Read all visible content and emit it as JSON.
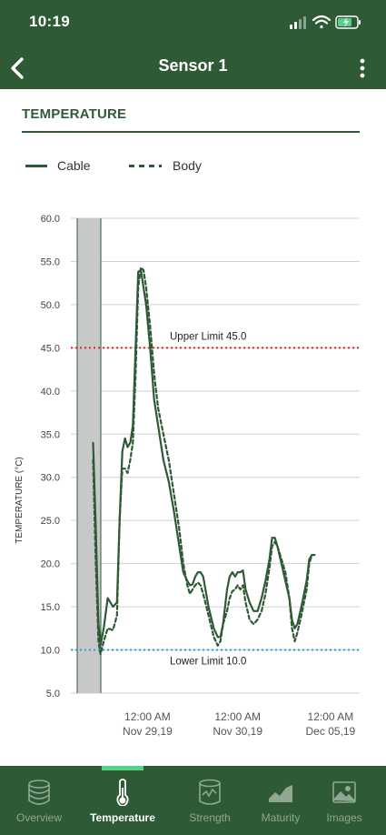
{
  "status_bar": {
    "time": "10:19"
  },
  "header": {
    "title": "Sensor 1",
    "back_icon": "chevron-left-icon",
    "menu_icon": "more-vertical-icon"
  },
  "section": {
    "title": "TEMPERATURE"
  },
  "legend": [
    {
      "label": "Cable",
      "style": "solid"
    },
    {
      "label": "Body",
      "style": "dashed"
    }
  ],
  "colors": {
    "brand": "#2f5a36",
    "upper_limit": "#e0262f",
    "lower_limit": "#2a9fd6",
    "active_indicator": "#57d18a",
    "shade": "#c8c8c8"
  },
  "chart_data": {
    "type": "line",
    "ylabel": "TEMPERATURE (°C)",
    "ylim": [
      5.0,
      60.0
    ],
    "yticks": [
      "60.0",
      "55.0",
      "50.0",
      "45.0",
      "40.0",
      "35.0",
      "30.0",
      "25.0",
      "20.0",
      "15.0",
      "10.0",
      "5.0"
    ],
    "xlim": [
      0,
      100
    ],
    "xticks": [
      {
        "x": 20,
        "line1": "12:00 AM",
        "line2": "Nov 29,19"
      },
      {
        "x": 54,
        "line1": "12:00 AM",
        "line2": "Nov 30,19"
      },
      {
        "x": 89,
        "line1": "12:00 AM",
        "line2": "Dec 05,19"
      }
    ],
    "grid": true,
    "shaded_range": [
      -6.5,
      2.4
    ],
    "limits": [
      {
        "label": "Upper Limit 45.0",
        "value": 45.0,
        "color": "#e0262f"
      },
      {
        "label": "Lower Limit 10.0",
        "value": 10.0,
        "color": "#2a9fd6"
      }
    ],
    "series": [
      {
        "name": "Cable",
        "style": "solid",
        "points": [
          [
            -0.5,
            34
          ],
          [
            0.5,
            24
          ],
          [
            1.5,
            13
          ],
          [
            2.3,
            10.6
          ],
          [
            3.5,
            12.5
          ],
          [
            5,
            16
          ],
          [
            7,
            15
          ],
          [
            8.5,
            15.5
          ],
          [
            9.5,
            25
          ],
          [
            10.5,
            33
          ],
          [
            11.5,
            34.5
          ],
          [
            12.5,
            33.5
          ],
          [
            13.5,
            34
          ],
          [
            14.5,
            36
          ],
          [
            15.5,
            45
          ],
          [
            16.5,
            53.8
          ],
          [
            17.5,
            54
          ],
          [
            18.5,
            52
          ],
          [
            19.5,
            50
          ],
          [
            21,
            45
          ],
          [
            22.5,
            39
          ],
          [
            24,
            36
          ],
          [
            26,
            32
          ],
          [
            28,
            29.5
          ],
          [
            30,
            26
          ],
          [
            32,
            22
          ],
          [
            33.5,
            19
          ],
          [
            35,
            18
          ],
          [
            36,
            17.5
          ],
          [
            37,
            17.6
          ],
          [
            38,
            18.5
          ],
          [
            39,
            19
          ],
          [
            40,
            19
          ],
          [
            41,
            18.5
          ],
          [
            43,
            15
          ],
          [
            45,
            12.5
          ],
          [
            46.5,
            11.5
          ],
          [
            47.5,
            11.5
          ],
          [
            48.5,
            13
          ],
          [
            50,
            17
          ],
          [
            51,
            18.5
          ],
          [
            52,
            19
          ],
          [
            53,
            18.5
          ],
          [
            54,
            19
          ],
          [
            55,
            19
          ],
          [
            56,
            19.2
          ],
          [
            57,
            17
          ],
          [
            58.5,
            15.5
          ],
          [
            60,
            14.5
          ],
          [
            61.5,
            14.5
          ],
          [
            63,
            16
          ],
          [
            64.5,
            18
          ],
          [
            66,
            20.5
          ],
          [
            67,
            23
          ],
          [
            68,
            23
          ],
          [
            69,
            22
          ],
          [
            70.5,
            20
          ],
          [
            72,
            18
          ],
          [
            73.5,
            16
          ],
          [
            74.5,
            13.5
          ],
          [
            75.5,
            12.5
          ],
          [
            76.5,
            13
          ],
          [
            78,
            15
          ],
          [
            80,
            18
          ],
          [
            81,
            20.5
          ],
          [
            82,
            21
          ]
        ]
      },
      {
        "name": "Body",
        "style": "dashed",
        "points": [
          [
            -0.5,
            32
          ],
          [
            0.5,
            20
          ],
          [
            1.5,
            11
          ],
          [
            2.3,
            9.5
          ],
          [
            3.5,
            11
          ],
          [
            5,
            12.5
          ],
          [
            7,
            12.3
          ],
          [
            8.5,
            14
          ],
          [
            9.5,
            25
          ],
          [
            10.5,
            31
          ],
          [
            11.5,
            31
          ],
          [
            12.5,
            30.5
          ],
          [
            13.5,
            32
          ],
          [
            14.5,
            34
          ],
          [
            15.5,
            42
          ],
          [
            16.5,
            52
          ],
          [
            17.5,
            54.3
          ],
          [
            18.5,
            54
          ],
          [
            19.5,
            52
          ],
          [
            21,
            47.5
          ],
          [
            22.5,
            42
          ],
          [
            24,
            38
          ],
          [
            26,
            35
          ],
          [
            28,
            32
          ],
          [
            30,
            28
          ],
          [
            32,
            24
          ],
          [
            33.5,
            20
          ],
          [
            35,
            17.5
          ],
          [
            36,
            16.5
          ],
          [
            37,
            17
          ],
          [
            38,
            17.5
          ],
          [
            39,
            17.8
          ],
          [
            40,
            17.5
          ],
          [
            41,
            16.5
          ],
          [
            43,
            14
          ],
          [
            45,
            11.5
          ],
          [
            46.5,
            10.5
          ],
          [
            47.5,
            11
          ],
          [
            48.5,
            13
          ],
          [
            50,
            14.5
          ],
          [
            51,
            16
          ],
          [
            52,
            16.8
          ],
          [
            53,
            17
          ],
          [
            54,
            17.5
          ],
          [
            55,
            17
          ],
          [
            56,
            17.5
          ],
          [
            57,
            15.5
          ],
          [
            58.5,
            13.5
          ],
          [
            60,
            13
          ],
          [
            61.5,
            13.5
          ],
          [
            63,
            14.5
          ],
          [
            64.5,
            16.5
          ],
          [
            66,
            19.5
          ],
          [
            67,
            22
          ],
          [
            68,
            22.5
          ],
          [
            69,
            22
          ],
          [
            70.5,
            20.5
          ],
          [
            72,
            19
          ],
          [
            73.5,
            16
          ],
          [
            74.5,
            12.5
          ],
          [
            75.5,
            11
          ],
          [
            76.5,
            12
          ],
          [
            78,
            14
          ],
          [
            80,
            17
          ],
          [
            81,
            20
          ],
          [
            82,
            21
          ],
          [
            83,
            21
          ]
        ]
      }
    ]
  },
  "tabs": [
    {
      "label": "Overview",
      "icon": "database-icon",
      "active": false
    },
    {
      "label": "Temperature",
      "icon": "thermometer-icon",
      "active": true
    },
    {
      "label": "Strength",
      "icon": "strength-cylinder-icon",
      "active": false
    },
    {
      "label": "Maturity",
      "icon": "maturity-area-chart-icon",
      "active": false
    },
    {
      "label": "Images",
      "icon": "image-icon",
      "active": false
    }
  ]
}
